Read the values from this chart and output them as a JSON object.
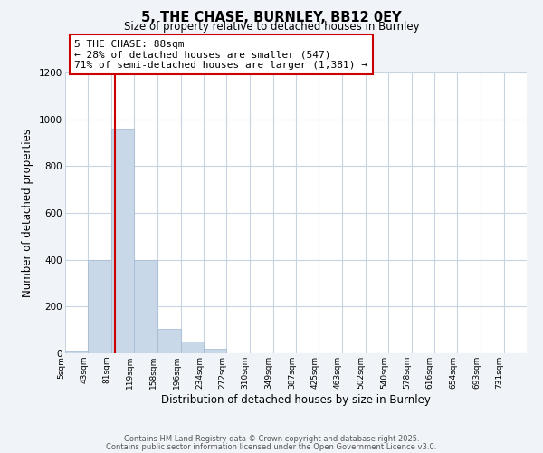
{
  "title": "5, THE CHASE, BURNLEY, BB12 0EY",
  "subtitle": "Size of property relative to detached houses in Burnley",
  "xlabel": "Distribution of detached houses by size in Burnley",
  "ylabel": "Number of detached properties",
  "bar_color": "#c8d8e8",
  "bar_edge_color": "#a0b8d0",
  "vline_color": "#cc0000",
  "vline_x": 88,
  "annotation_title": "5 THE CHASE: 88sqm",
  "annotation_line1": "← 28% of detached houses are smaller (547)",
  "annotation_line2": "71% of semi-detached houses are larger (1,381) →",
  "annotation_box_color": "#ffffff",
  "annotation_box_edge": "#cc0000",
  "bins": [
    5,
    43,
    81,
    119,
    158,
    196,
    234,
    272,
    310,
    349,
    387,
    425,
    463,
    502,
    540,
    578,
    616,
    654,
    693,
    731,
    769
  ],
  "bar_heights": [
    10,
    400,
    960,
    400,
    105,
    50,
    20,
    0,
    0,
    0,
    0,
    0,
    0,
    0,
    0,
    0,
    0,
    0,
    0,
    0
  ],
  "ylim": [
    0,
    1200
  ],
  "yticks": [
    0,
    200,
    400,
    600,
    800,
    1000,
    1200
  ],
  "xlim": [
    5,
    769
  ],
  "footer_line1": "Contains HM Land Registry data © Crown copyright and database right 2025.",
  "footer_line2": "Contains public sector information licensed under the Open Government Licence v3.0.",
  "background_color": "#f0f4f8",
  "plot_background_color": "#ffffff",
  "grid_color": "#c8d4e0"
}
